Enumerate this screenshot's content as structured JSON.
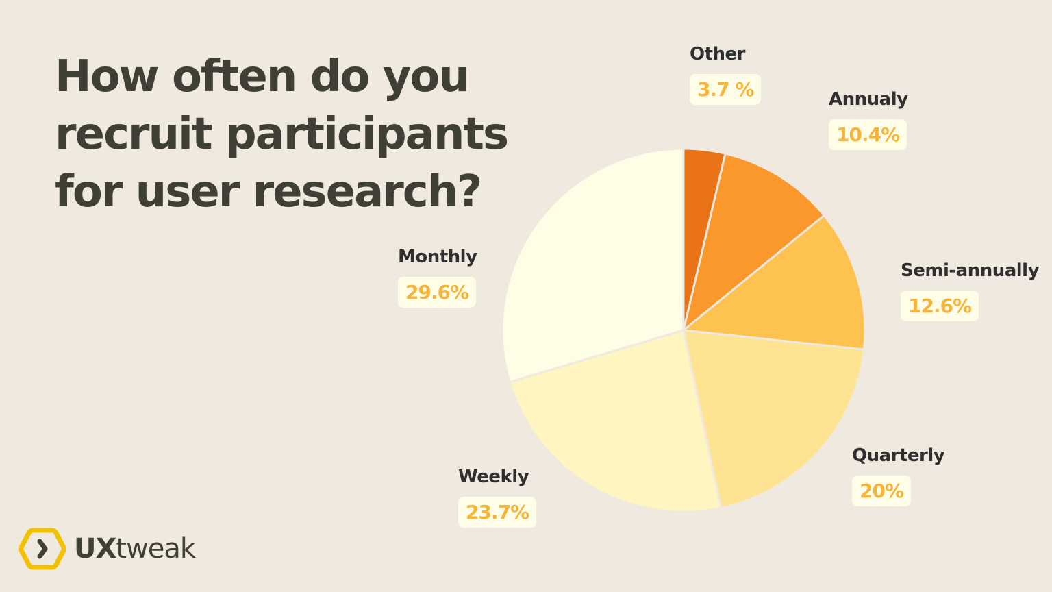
{
  "title": {
    "lines": [
      "How often do you",
      "recruit participants",
      "for user research?"
    ]
  },
  "chart_data": {
    "type": "pie",
    "title": "How often do you recruit participants for user research?",
    "start_angle": "12 o'clock, clockwise",
    "categories": [
      "Other",
      "Annualy",
      "Semi-annually",
      "Quarterly",
      "Weekly",
      "Monthly"
    ],
    "values": [
      3.7,
      10.4,
      12.6,
      20,
      23.7,
      29.6
    ],
    "value_labels": [
      "3.7 %",
      "10.4%",
      "12.6%",
      "20%",
      "23.7%",
      "29.6%"
    ],
    "colors": [
      "#EB7317",
      "#FB982B",
      "#FEC250",
      "#FEE392",
      "#FEF5C0",
      "#FEFEE6"
    ],
    "legend": "none (direct labels)"
  },
  "labels": {
    "other": {
      "name": "Other",
      "value": "3.7 %"
    },
    "annualy": {
      "name": "Annualy",
      "value": "10.4%"
    },
    "semi": {
      "name": "Semi-annually",
      "value": "12.6%"
    },
    "quarterly": {
      "name": "Quarterly",
      "value": "20%"
    },
    "weekly": {
      "name": "Weekly",
      "value": "23.7%"
    },
    "monthly": {
      "name": "Monthly",
      "value": "29.6%"
    }
  },
  "brand": {
    "name_bold": "UX",
    "name_light": "tweak",
    "logo_icon": "hexagon-chevron-icon",
    "accent": "#F2C200"
  }
}
